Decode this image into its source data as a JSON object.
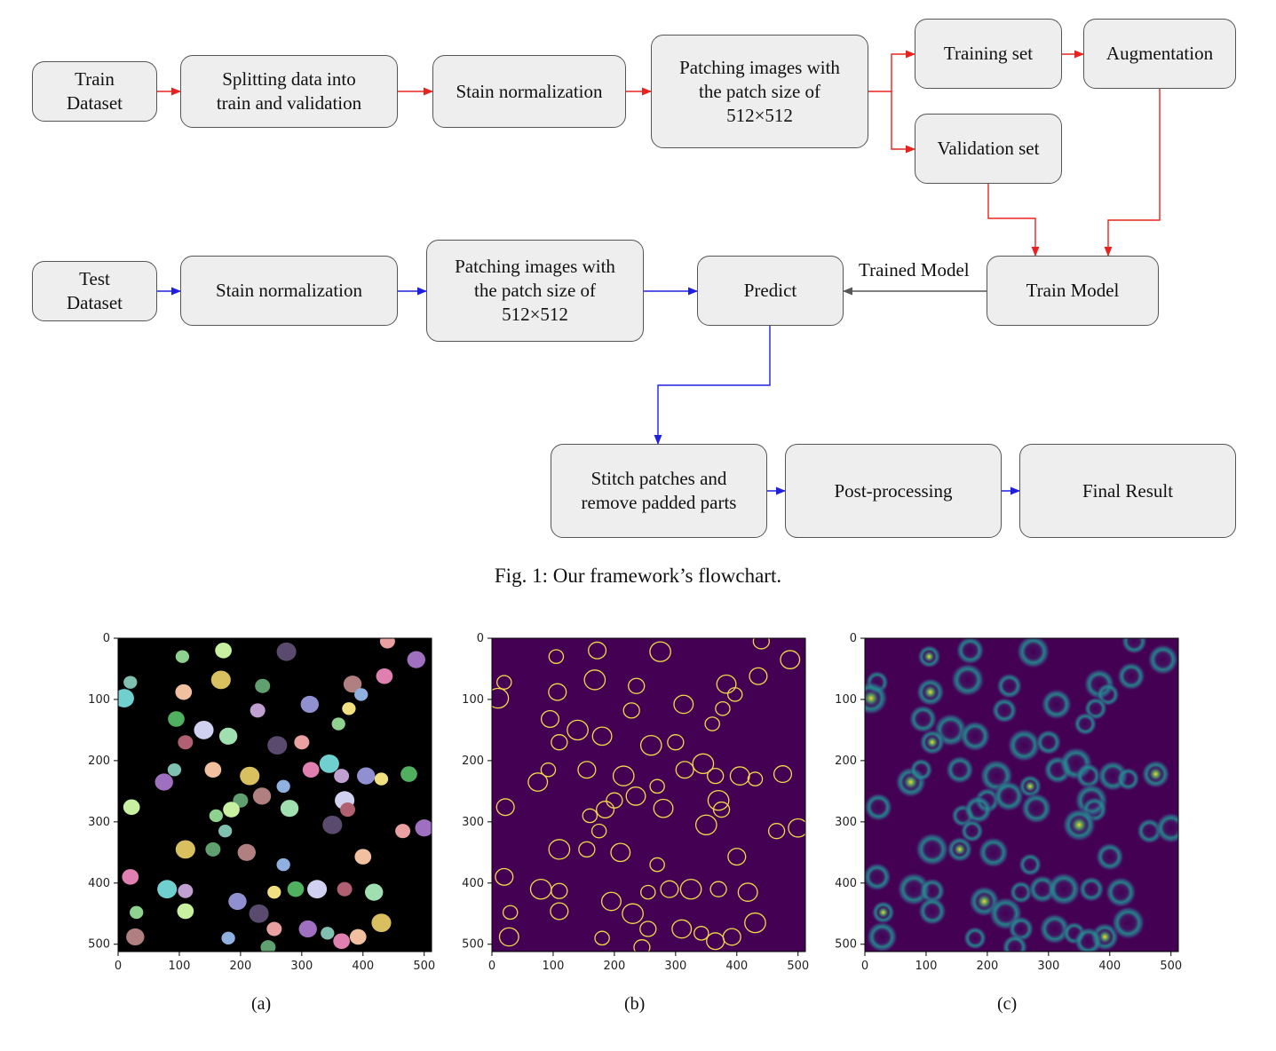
{
  "flowchart": {
    "nodes": {
      "train_dataset": "Train\nDataset",
      "splitting": "Splitting data into\ntrain  and validation",
      "stain_norm_train": "Stain normalization",
      "patching_train": "Patching images with\nthe patch size of\n512×512",
      "training_set": "Training set",
      "augmentation": "Augmentation",
      "validation_set": "Validation set",
      "train_model": "Train Model",
      "test_dataset": "Test\nDataset",
      "stain_norm_test": "Stain normalization",
      "patching_test": "Patching images with\nthe patch size of\n512×512",
      "predict": "Predict",
      "stitch": "Stitch patches and\nremove padded parts",
      "postprocessing": "Post-processing",
      "final_result": "Final Result"
    },
    "edge_label_trained_model": "Trained Model",
    "colors": {
      "train_path": "#e8231f",
      "test_path": "#1f1fe0",
      "model_link": "#555555"
    }
  },
  "fig1_caption": "Fig. 1: Our framework’s flowchart.",
  "panels": [
    {
      "id": "a",
      "label": "(a)",
      "colormap": "random colored instance masks on black"
    },
    {
      "id": "b",
      "label": "(b)",
      "colormap": "yellow contours on purple"
    },
    {
      "id": "c",
      "label": "(c)",
      "colormap": "viridis"
    }
  ],
  "axis_ticks": {
    "x": [
      "0",
      "100",
      "200",
      "300",
      "400",
      "500"
    ],
    "y": [
      "0",
      "100",
      "200",
      "300",
      "400",
      "500"
    ]
  }
}
